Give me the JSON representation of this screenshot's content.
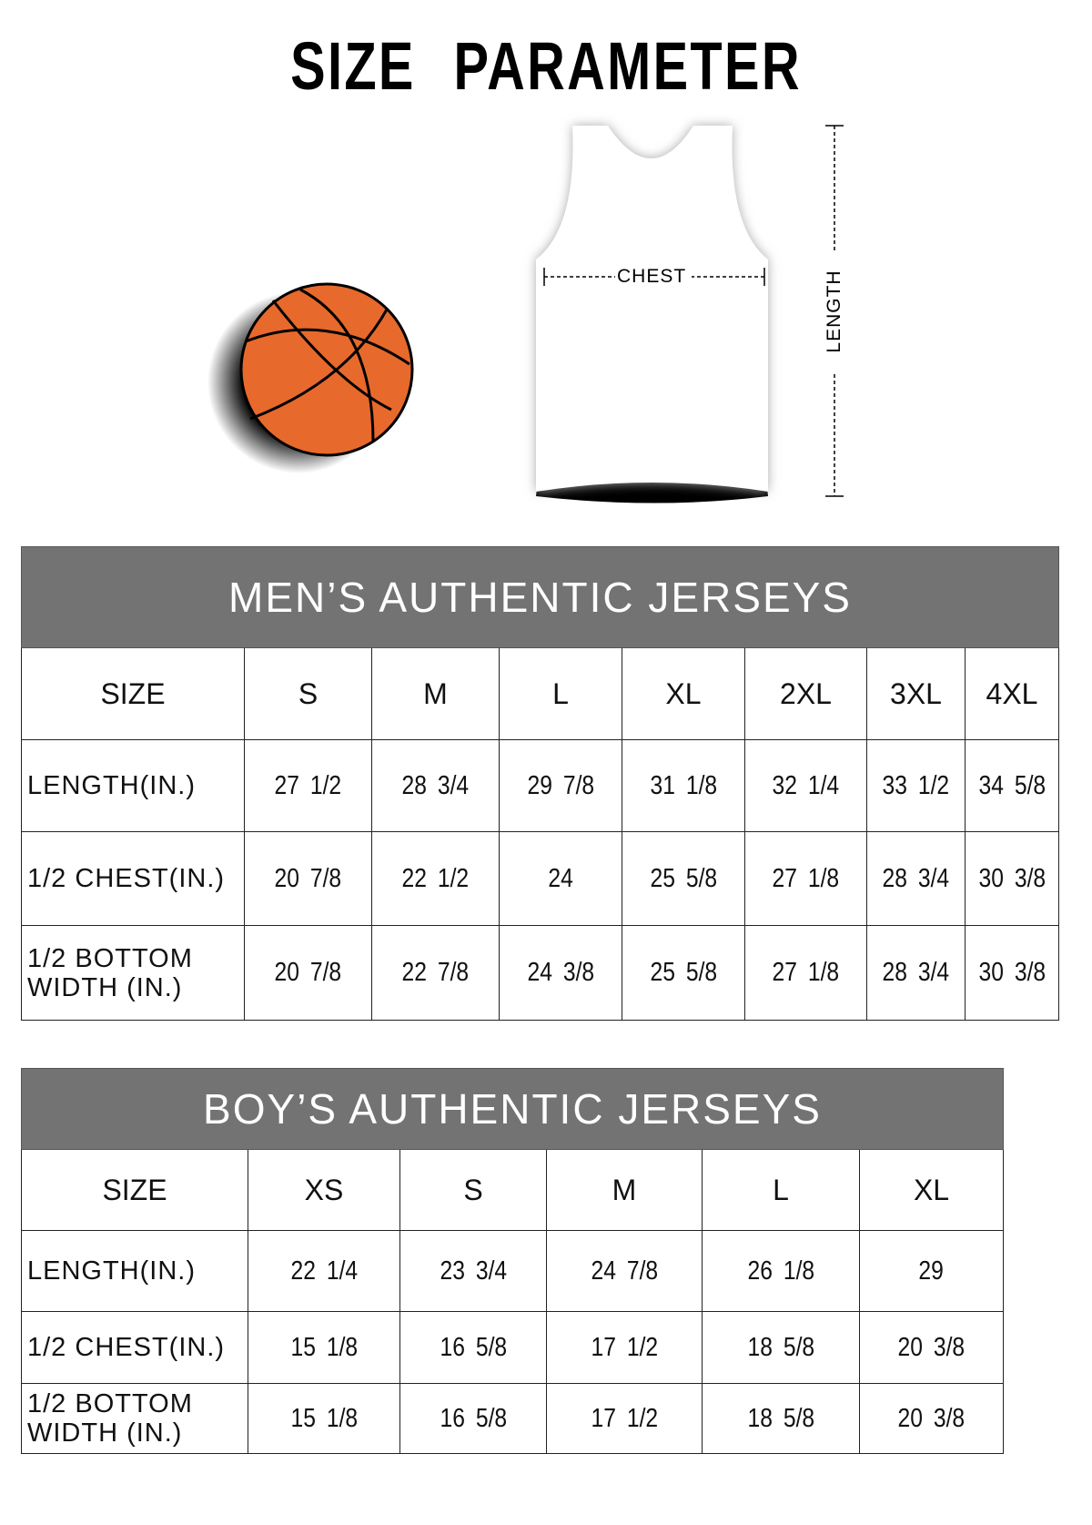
{
  "title": "SIZE PARAMETER",
  "illustration": {
    "chest_label": "CHEST",
    "length_label": "LENGTH",
    "ball_color": "#e8692c"
  },
  "header_color": "#737373",
  "mens": {
    "title": "MEN’S AUTHENTIC JERSEYS",
    "size_label": "SIZE",
    "sizes": [
      "S",
      "M",
      "L",
      "XL",
      "2XL",
      "3XL",
      "4XL"
    ],
    "rows": [
      {
        "label": "LENGTH(IN.)",
        "values": [
          "27 1/2",
          "28 3/4",
          "29 7/8",
          "31 1/8",
          "32 1/4",
          "33 1/2",
          "34 5/8"
        ]
      },
      {
        "label": "1/2 CHEST(IN.)",
        "values": [
          "20 7/8",
          "22 1/2",
          "24",
          "25 5/8",
          "27 1/8",
          "28 3/4",
          "30 3/8"
        ]
      },
      {
        "label": "1/2 BOTTOM WIDTH (IN.)",
        "values": [
          "20 7/8",
          "22 7/8",
          "24 3/8",
          "25 5/8",
          "27 1/8",
          "28 3/4",
          "30 3/8"
        ]
      }
    ]
  },
  "boys": {
    "title": "BOY’S AUTHENTIC JERSEYS",
    "size_label": "SIZE",
    "sizes": [
      "XS",
      "S",
      "M",
      "L",
      "XL"
    ],
    "rows": [
      {
        "label": "LENGTH(IN.)",
        "values": [
          "22 1/4",
          "23 3/4",
          "24 7/8",
          "26 1/8",
          "29"
        ]
      },
      {
        "label": "1/2 CHEST(IN.)",
        "values": [
          "15 1/8",
          "16 5/8",
          "17 1/2",
          "18 5/8",
          "20 3/8"
        ]
      },
      {
        "label": "1/2 BOTTOM WIDTH (IN.)",
        "values": [
          "15 1/8",
          "16 5/8",
          "17 1/2",
          "18 5/8",
          "20 3/8"
        ]
      }
    ]
  }
}
